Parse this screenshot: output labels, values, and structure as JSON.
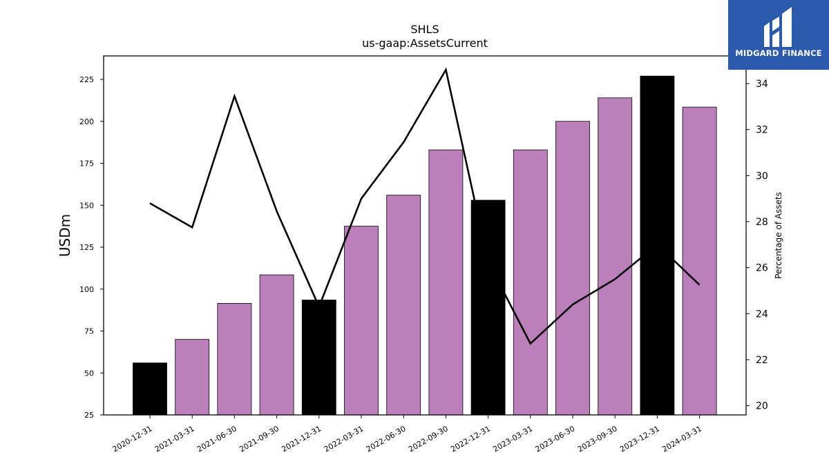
{
  "chart_data": {
    "type": "bar+line",
    "title": "SHLS",
    "subtitle": "us-gaap:AssetsCurrent",
    "ylabel": "USDm",
    "y2label": "Percentage of Assets",
    "categories": [
      "2020-12-31",
      "2021-03-31",
      "2021-06-30",
      "2021-09-30",
      "2021-12-31",
      "2022-03-31",
      "2022-06-30",
      "2022-09-30",
      "2022-12-31",
      "2023-03-31",
      "2023-06-30",
      "2023-09-30",
      "2023-12-31",
      "2024-03-31"
    ],
    "series": [
      {
        "type": "bar",
        "axis": "left",
        "values": [
          56,
          70,
          91.5,
          108.5,
          93.5,
          137.5,
          156,
          183,
          153,
          183,
          200,
          214,
          227,
          208.5
        ],
        "colors": [
          "#000000",
          "#bb7fbc",
          "#bb7fbc",
          "#bb7fbc",
          "#000000",
          "#bb7fbc",
          "#bb7fbc",
          "#bb7fbc",
          "#000000",
          "#bb7fbc",
          "#bb7fbc",
          "#bb7fbc",
          "#000000",
          "#bb7fbc"
        ]
      },
      {
        "type": "line",
        "axis": "right",
        "color": "#000000",
        "values": [
          28.8,
          27.75,
          33.45,
          28.45,
          24.3,
          29.0,
          31.45,
          34.6,
          26.25,
          22.7,
          24.4,
          25.5,
          27.0,
          25.25
        ]
      }
    ],
    "ylim": [
      25,
      239
    ],
    "y2lim": [
      19.6,
      35.2
    ],
    "yticks": [
      25,
      50,
      75,
      100,
      125,
      150,
      175,
      200,
      225
    ],
    "y2ticks": [
      20,
      22,
      24,
      26,
      28,
      30,
      32,
      34
    ],
    "grid": false
  },
  "logo": {
    "text": "MIDGARD FINANCE"
  }
}
